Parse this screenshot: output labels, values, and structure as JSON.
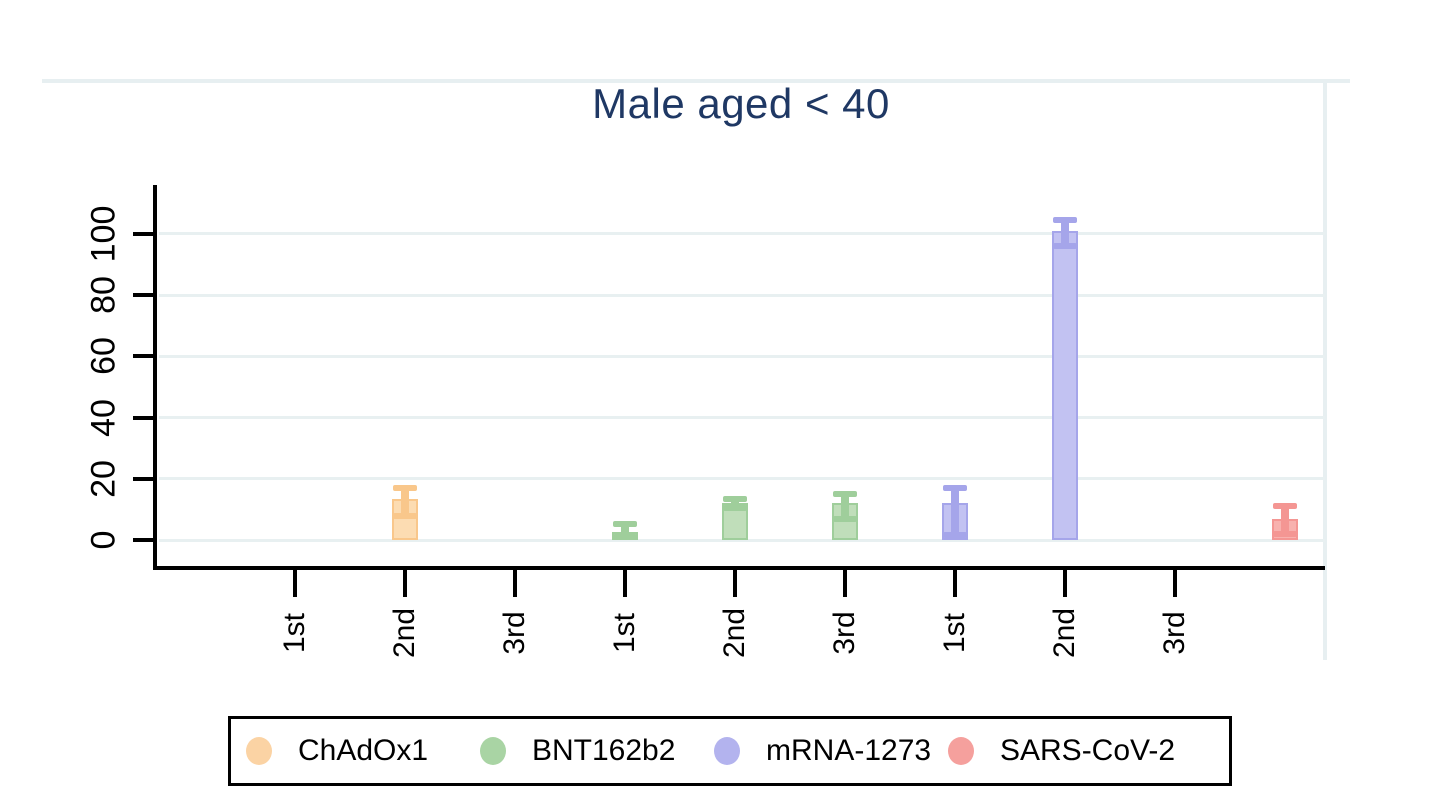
{
  "chart_data": {
    "type": "bar",
    "title": "Male aged < 40",
    "title_color": "#1F3864",
    "xlabel": "",
    "ylabel": "",
    "y_ticks": [
      0,
      20,
      40,
      60,
      80,
      100
    ],
    "ylim": [
      0,
      116
    ],
    "grid": true,
    "grid_color": "#E8F0F1",
    "plot_border_color": "#E7EFF1",
    "x_tick_labels": [
      "1st",
      "2nd",
      "3rd",
      "1st",
      "2nd",
      "3rd",
      "1st",
      "2nd",
      "3rd",
      ""
    ],
    "bars": [
      {
        "series": "ChAdOx1",
        "dose": "2nd",
        "slot": 1,
        "value": 13.5,
        "ci_low": 8,
        "ci_high": 17
      },
      {
        "series": "BNT162b2",
        "dose": "1st",
        "slot": 3,
        "value": 2.5,
        "ci_low": 1,
        "ci_high": 5.2
      },
      {
        "series": "BNT162b2",
        "dose": "2nd",
        "slot": 4,
        "value": 12,
        "ci_low": 10.5,
        "ci_high": 13.3
      },
      {
        "series": "BNT162b2",
        "dose": "3rd",
        "slot": 5,
        "value": 12,
        "ci_low": 7,
        "ci_high": 15
      },
      {
        "series": "mRNA-1273",
        "dose": "1st",
        "slot": 6,
        "value": 12,
        "ci_low": 1.5,
        "ci_high": 17
      },
      {
        "series": "mRNA-1273",
        "dose": "2nd",
        "slot": 7,
        "value": 101,
        "ci_low": 96,
        "ci_high": 104.5
      },
      {
        "series": "SARS-CoV-2",
        "dose": "",
        "slot": 9,
        "value": 7,
        "ci_low": 2,
        "ci_high": 11
      }
    ],
    "series_colors": {
      "ChAdOx1": {
        "fill": "#FCDCB2",
        "edge": "#F9C78B"
      },
      "BNT162b2": {
        "fill": "#C0DEBA",
        "edge": "#9FCE9B"
      },
      "mRNA-1273": {
        "fill": "#C2C2F2",
        "edge": "#A5A5EA"
      },
      "SARS-CoV-2": {
        "fill": "#F8B1AE",
        "edge": "#F49693"
      }
    },
    "legend_position": "bottom",
    "legend": [
      {
        "label": "ChAdOx1",
        "color": "#FBD3A4"
      },
      {
        "label": "BNT162b2",
        "color": "#A9D4A4"
      },
      {
        "label": "mRNA-1273",
        "color": "#B3B3EE"
      },
      {
        "label": "SARS-CoV-2",
        "color": "#F5A09D"
      }
    ]
  }
}
